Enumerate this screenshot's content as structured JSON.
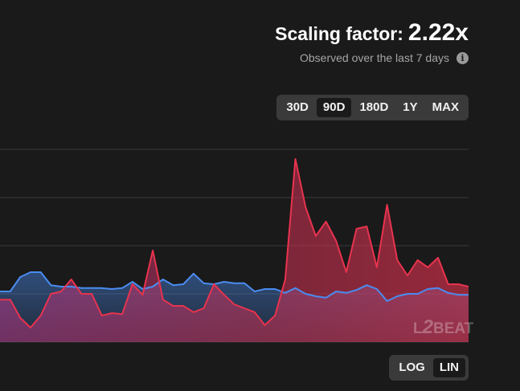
{
  "scaling": {
    "label": "Scaling factor:",
    "value": "2.22x"
  },
  "subtitle": "Observed over the last 7 days",
  "info_icon": "info-icon",
  "time_range": {
    "options": [
      "30D",
      "90D",
      "180D",
      "1Y",
      "MAX"
    ],
    "selected": "90D"
  },
  "scale": {
    "options": [
      "LOG",
      "LIN"
    ],
    "selected": "LIN"
  },
  "watermark": {
    "first": "L",
    "big": "2",
    "rest": "BEAT"
  },
  "colors": {
    "background": "#1a1a1a",
    "blue_series": "#4a8cf0",
    "red_series": "#e8334e",
    "gridline": "#3a3a3a"
  },
  "chart_data": {
    "type": "area",
    "grid": true,
    "ylim": [
      0,
      4
    ],
    "series": [
      {
        "color": "#4a8cf0",
        "values": [
          1.05,
          1.05,
          1.35,
          1.45,
          1.45,
          1.18,
          1.15,
          1.15,
          1.12,
          1.12,
          1.12,
          1.1,
          1.12,
          1.25,
          1.1,
          1.15,
          1.3,
          1.18,
          1.2,
          1.42,
          1.22,
          1.2,
          1.25,
          1.22,
          1.22,
          1.05,
          1.1,
          1.1,
          1.02,
          1.12,
          1.0,
          0.95,
          0.92,
          1.05,
          1.02,
          1.08,
          1.18,
          1.1,
          0.85,
          0.95,
          1.0,
          1.0,
          1.1,
          1.12,
          1.02,
          0.98,
          0.98
        ]
      },
      {
        "color": "#e8334e",
        "values": [
          0.88,
          0.88,
          0.5,
          0.3,
          0.55,
          1.0,
          1.05,
          1.3,
          1.0,
          1.0,
          0.55,
          0.6,
          0.58,
          1.2,
          0.98,
          1.9,
          0.88,
          0.75,
          0.75,
          0.62,
          0.7,
          1.2,
          0.98,
          0.78,
          0.7,
          0.62,
          0.35,
          0.55,
          1.3,
          3.8,
          2.8,
          2.2,
          2.5,
          2.1,
          1.45,
          2.35,
          2.4,
          1.55,
          2.85,
          1.7,
          1.38,
          1.7,
          1.55,
          1.75,
          1.2,
          1.2,
          1.15
        ]
      }
    ]
  }
}
